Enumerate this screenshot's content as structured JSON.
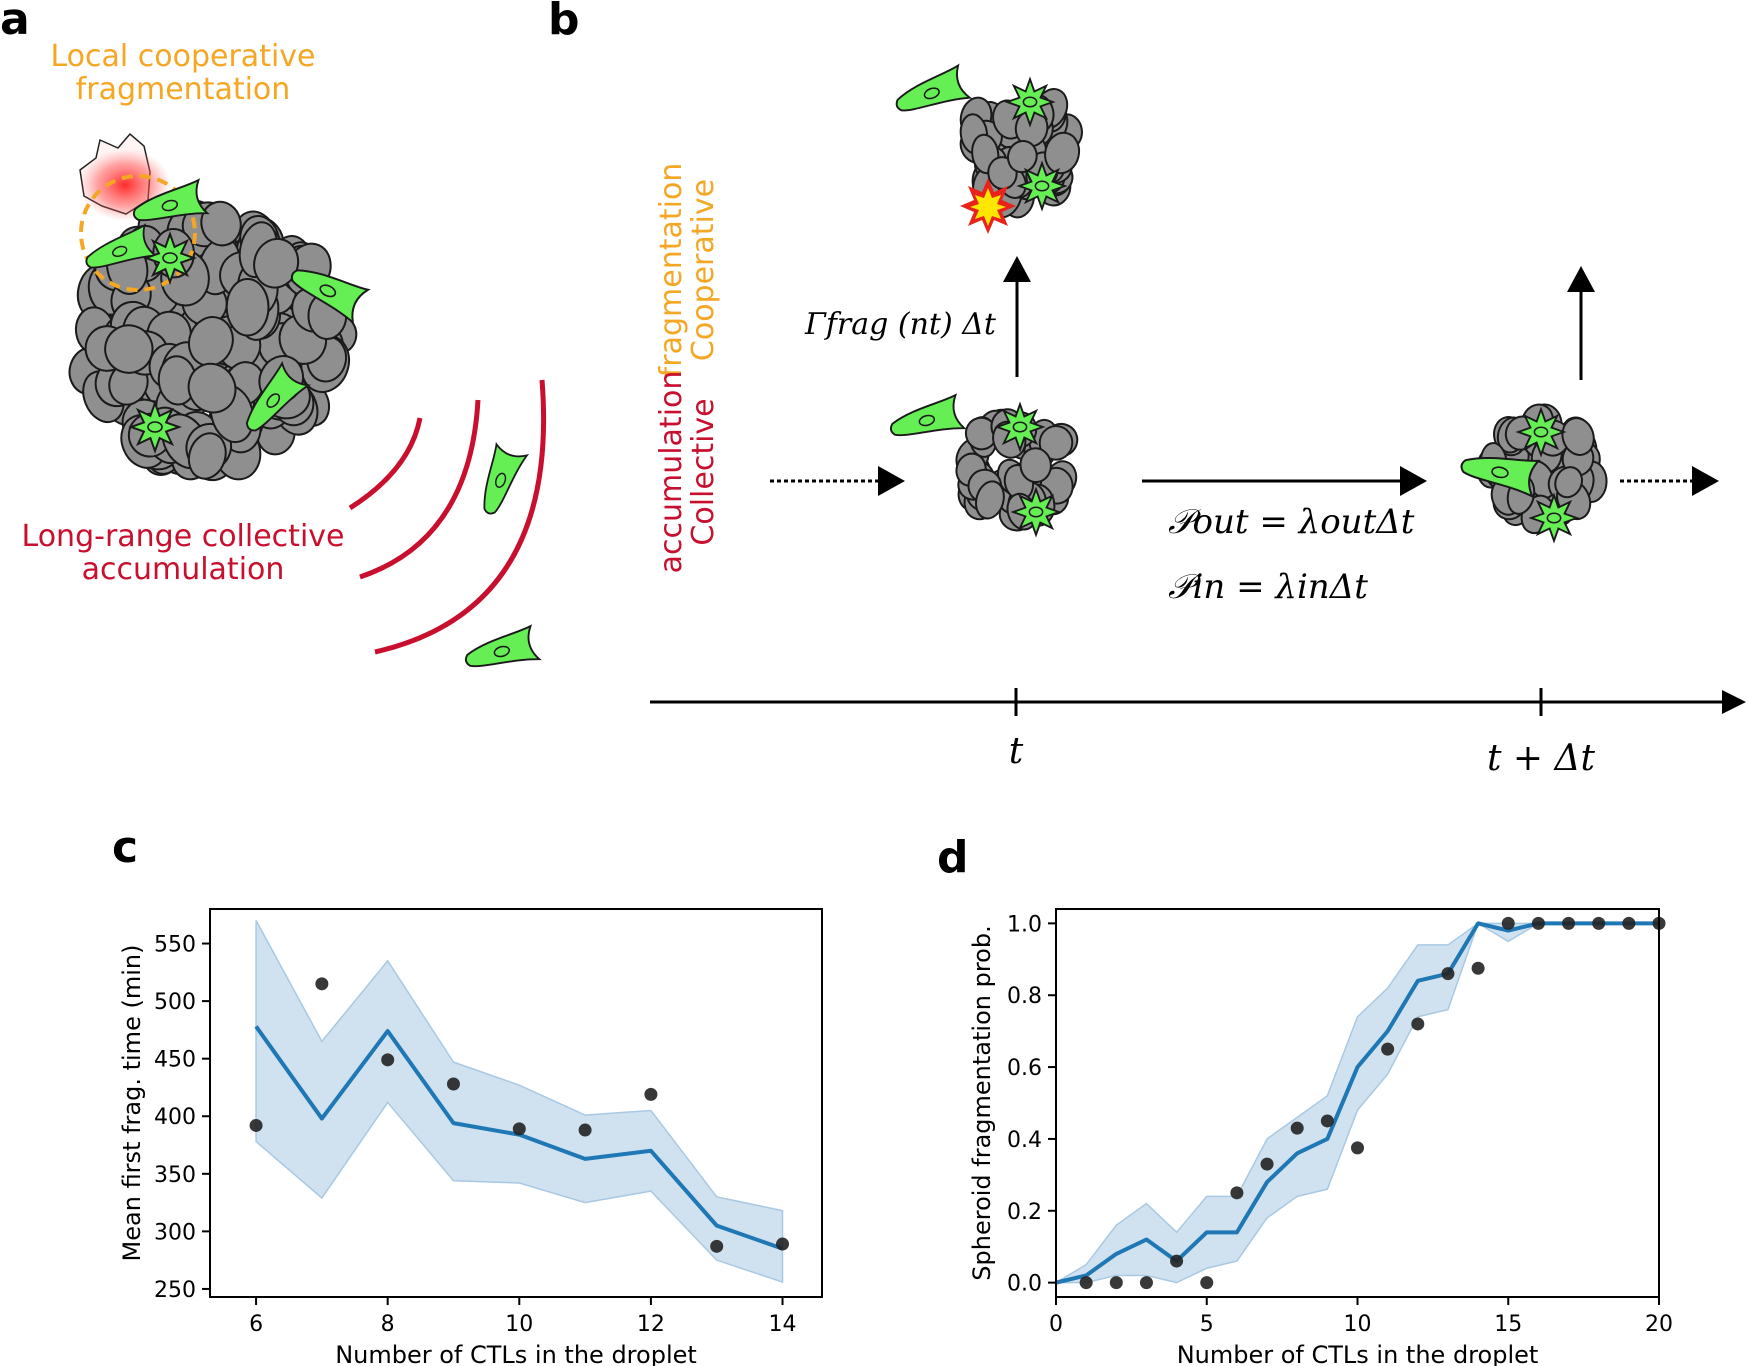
{
  "panel_a": {
    "letter": "a",
    "local_label_1": "Local cooperative",
    "local_label_2": "fragmentation",
    "long_label_1": "Long-range collective",
    "long_label_2": "accumulation"
  },
  "panel_b": {
    "letter": "b",
    "coop_1": "Cooperative",
    "coop_2": "fragmentation",
    "coll_1": "Collective",
    "coll_2": "accumulation",
    "gamma_label": "Γfrag (nt) Δt",
    "p_out": "𝒫out = λoutΔt",
    "p_in": "𝒫in = λinΔt",
    "t_label": "t",
    "t_dt_label": "t + Δt"
  },
  "chart_data": [
    {
      "panel": "c",
      "type": "line",
      "xlabel": "Number of CTLs in the droplet",
      "ylabel": "Mean first frag. time (min)",
      "xlim": [
        5.3,
        14.6
      ],
      "ylim": [
        243,
        580
      ],
      "xticks": [
        6,
        8,
        10,
        12,
        14
      ],
      "yticks": [
        250,
        300,
        350,
        400,
        450,
        500,
        550
      ],
      "line": {
        "x": [
          6,
          7,
          8,
          9,
          10,
          11,
          12,
          13,
          14
        ],
        "y": [
          478,
          398,
          474,
          394,
          384,
          363,
          370,
          305,
          285
        ]
      },
      "band": {
        "x": [
          6,
          7,
          8,
          9,
          10,
          11,
          12,
          13,
          14
        ],
        "upper": [
          570,
          465,
          535,
          447,
          427,
          401,
          405,
          330,
          318
        ],
        "lower": [
          378,
          329,
          412,
          344,
          342,
          325,
          335,
          275,
          256
        ]
      },
      "points": {
        "x": [
          6,
          7,
          8,
          9,
          10,
          11,
          12,
          13,
          14
        ],
        "y": [
          392,
          515,
          449,
          428,
          389,
          388,
          419,
          287,
          289
        ]
      },
      "colors": {
        "line": "#1f77b4",
        "band": "#a9c9e3",
        "points": "#222222"
      }
    },
    {
      "panel": "d",
      "type": "line",
      "xlabel": "Number of CTLs in the droplet",
      "ylabel": "Spheroid fragmentation prob.",
      "xlim": [
        0,
        20
      ],
      "ylim": [
        -0.04,
        1.04
      ],
      "xticks": [
        0,
        5,
        10,
        15,
        20
      ],
      "yticks": [
        0.0,
        0.2,
        0.4,
        0.6,
        0.8,
        1.0
      ],
      "line": {
        "x": [
          0,
          1,
          2,
          3,
          4,
          5,
          6,
          7,
          8,
          9,
          10,
          11,
          12,
          13,
          14,
          15,
          16,
          17,
          18,
          19,
          20
        ],
        "y": [
          0.0,
          0.02,
          0.08,
          0.12,
          0.06,
          0.14,
          0.14,
          0.28,
          0.36,
          0.4,
          0.6,
          0.7,
          0.84,
          0.86,
          1.0,
          0.98,
          1.0,
          1.0,
          1.0,
          1.0,
          1.0
        ]
      },
      "band": {
        "x": [
          0,
          1,
          2,
          3,
          4,
          5,
          6,
          7,
          8,
          9,
          10,
          11,
          12,
          13,
          14,
          15,
          16,
          17,
          18,
          19,
          20
        ],
        "upper": [
          0.0,
          0.05,
          0.16,
          0.22,
          0.14,
          0.24,
          0.24,
          0.4,
          0.46,
          0.52,
          0.74,
          0.82,
          0.94,
          0.94,
          1.0,
          1.0,
          1.0,
          1.0,
          1.0,
          1.0,
          1.0
        ],
        "lower": [
          0.0,
          0.0,
          0.02,
          0.02,
          0.0,
          0.04,
          0.06,
          0.18,
          0.24,
          0.26,
          0.48,
          0.58,
          0.74,
          0.76,
          1.0,
          0.95,
          1.0,
          1.0,
          1.0,
          1.0,
          1.0
        ]
      },
      "points": {
        "x": [
          1,
          2,
          3,
          4,
          5,
          6,
          7,
          8,
          9,
          10,
          11,
          12,
          13,
          14,
          15,
          16,
          17,
          18,
          19,
          20
        ],
        "y": [
          0.0,
          0.0,
          0.0,
          0.06,
          0.0,
          0.25,
          0.33,
          0.43,
          0.45,
          0.375,
          0.65,
          0.72,
          0.86,
          0.875,
          1.0,
          1.0,
          1.0,
          1.0,
          1.0,
          1.0
        ]
      },
      "colors": {
        "line": "#1f77b4",
        "band": "#a9c9e3",
        "points": "#222222"
      }
    }
  ],
  "panel_c": {
    "letter": "c"
  },
  "panel_d": {
    "letter": "d"
  }
}
